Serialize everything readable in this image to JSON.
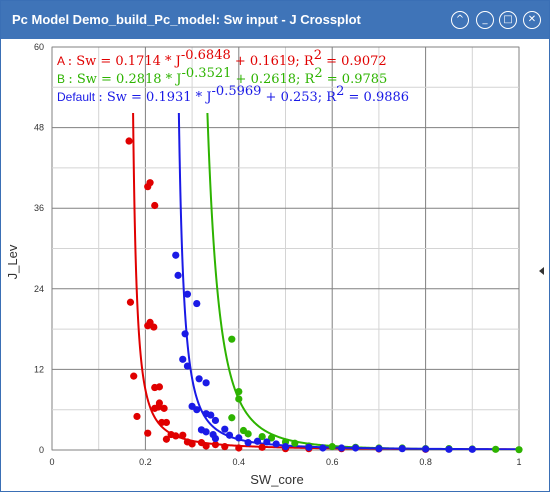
{
  "window": {
    "title": "Pc Model Demo_build_Pc_model: Sw input - J Crossplot",
    "buttons": [
      "^",
      "_",
      "□",
      "✕"
    ]
  },
  "chart_data": {
    "type": "scatter",
    "xlabel": "SW_core",
    "ylabel": "J_Lev",
    "xlim": [
      0,
      1
    ],
    "ylim": [
      0,
      60
    ],
    "xticks": [
      "0",
      "0.2",
      "0.4",
      "0.6",
      "0.8",
      "1"
    ],
    "yticks": [
      "0",
      "12",
      "24",
      "36",
      "48",
      "60"
    ],
    "grid": true,
    "series": [
      {
        "name": "A",
        "color": "#e00000",
        "equation": ": Sw = 0.1714 * J^-0.6848 + 0.1619; R^2 = 0.9072",
        "fit": {
          "a": 0.1714,
          "b": -0.6848,
          "c": 0.1619
        },
        "points": [
          [
            0.165,
            46
          ],
          [
            0.168,
            22
          ],
          [
            0.175,
            11
          ],
          [
            0.182,
            5
          ],
          [
            0.205,
            39.2
          ],
          [
            0.21,
            39.8
          ],
          [
            0.22,
            36.4
          ],
          [
            0.205,
            18.5
          ],
          [
            0.21,
            19
          ],
          [
            0.218,
            18.3
          ],
          [
            0.22,
            9.3
          ],
          [
            0.23,
            9.4
          ],
          [
            0.228,
            6.4
          ],
          [
            0.23,
            7
          ],
          [
            0.24,
            6.2
          ],
          [
            0.22,
            6.2
          ],
          [
            0.235,
            4.1
          ],
          [
            0.245,
            4.1
          ],
          [
            0.205,
            2.5
          ],
          [
            0.245,
            1.6
          ],
          [
            0.255,
            2.3
          ],
          [
            0.265,
            2.1
          ],
          [
            0.28,
            2.2
          ],
          [
            0.29,
            1.2
          ],
          [
            0.3,
            0.9
          ],
          [
            0.32,
            1.1
          ],
          [
            0.33,
            0.6
          ],
          [
            0.35,
            0.8
          ],
          [
            0.37,
            0.5
          ],
          [
            0.4,
            0.3
          ],
          [
            0.45,
            0.4
          ],
          [
            0.5,
            0.2
          ],
          [
            0.55,
            0.2
          ],
          [
            0.62,
            0.2
          ],
          [
            0.7,
            0.15
          ],
          [
            0.8,
            0.1
          ]
        ]
      },
      {
        "name": "B",
        "color": "#2db300",
        "equation": ": Sw = 0.2818 * J^-0.3521 + 0.2618; R^2 = 0.9785",
        "fit": {
          "a": 0.2818,
          "b": -0.3521,
          "c": 0.2618
        },
        "points": [
          [
            0.385,
            16.5
          ],
          [
            0.4,
            8.7
          ],
          [
            0.4,
            7.6
          ],
          [
            0.385,
            4.8
          ],
          [
            0.41,
            2.9
          ],
          [
            0.42,
            2.4
          ],
          [
            0.45,
            2
          ],
          [
            0.47,
            1.8
          ],
          [
            0.5,
            1.2
          ],
          [
            0.52,
            1
          ],
          [
            0.55,
            0.6
          ],
          [
            0.6,
            0.5
          ],
          [
            0.65,
            0.4
          ],
          [
            0.7,
            0.3
          ],
          [
            0.75,
            0.3
          ],
          [
            0.8,
            0.2
          ],
          [
            0.85,
            0.2
          ],
          [
            0.9,
            0.15
          ],
          [
            0.95,
            0.1
          ],
          [
            1.0,
            0.05
          ]
        ]
      },
      {
        "name": "Default",
        "color": "#1a1ae6",
        "equation": ": Sw = 0.1931 * J^-0.5969 + 0.253; R^2 = 0.9886",
        "fit": {
          "a": 0.1931,
          "b": -0.5969,
          "c": 0.253
        },
        "points": [
          [
            0.265,
            29
          ],
          [
            0.27,
            26
          ],
          [
            0.29,
            23.2
          ],
          [
            0.31,
            21.8
          ],
          [
            0.285,
            17.3
          ],
          [
            0.28,
            13.5
          ],
          [
            0.29,
            12.5
          ],
          [
            0.315,
            10.6
          ],
          [
            0.33,
            10
          ],
          [
            0.3,
            6.5
          ],
          [
            0.31,
            6
          ],
          [
            0.33,
            5.4
          ],
          [
            0.34,
            5.2
          ],
          [
            0.32,
            3
          ],
          [
            0.33,
            2.7
          ],
          [
            0.345,
            2.3
          ],
          [
            0.35,
            4.4
          ],
          [
            0.35,
            1.7
          ],
          [
            0.37,
            3.1
          ],
          [
            0.38,
            2.2
          ],
          [
            0.4,
            1.8
          ],
          [
            0.42,
            1.1
          ],
          [
            0.44,
            1.3
          ],
          [
            0.46,
            1.2
          ],
          [
            0.48,
            0.9
          ],
          [
            0.5,
            0.5
          ],
          [
            0.55,
            0.4
          ],
          [
            0.58,
            0.3
          ],
          [
            0.62,
            0.3
          ],
          [
            0.65,
            0.3
          ],
          [
            0.7,
            0.2
          ],
          [
            0.75,
            0.2
          ],
          [
            0.8,
            0.15
          ],
          [
            0.85,
            0.1
          ],
          [
            0.9,
            0.1
          ]
        ]
      }
    ]
  }
}
